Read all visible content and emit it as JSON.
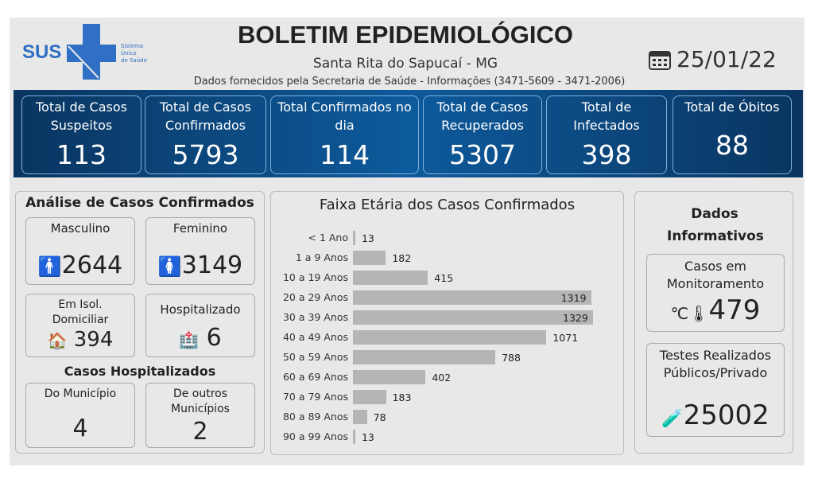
{
  "header": {
    "logo_text": "SUS",
    "logo_sub": [
      "Sistema",
      "Único",
      "de Saúde"
    ],
    "title": "BOLETIM EPIDEMIOLÓGICO",
    "subtitle": "Santa Rita do Sapucaí - MG",
    "source": "Dados fornecidos pela Secretaria de Saúde - Informações (3471-5609 - 3471-2006)",
    "date": "25/01/22",
    "date_icon": "calendar-icon"
  },
  "cards": [
    {
      "label": "Total de Casos Suspeitos",
      "value": "113"
    },
    {
      "label": "Total de Casos Confirmados",
      "value": "5793"
    },
    {
      "label": "Total Confirmados no dia",
      "value": "114"
    },
    {
      "label": "Total de Casos Recuperados",
      "value": "5307"
    },
    {
      "label": "Total de Infectados",
      "value": "398"
    },
    {
      "label": "Total de Óbitos",
      "value": "88"
    }
  ],
  "analysis": {
    "title": "Análise de Casos Confirmados",
    "masculino": {
      "label": "Masculino",
      "value": "2644"
    },
    "feminino": {
      "label": "Feminino",
      "value": "3149"
    },
    "isolamento": {
      "label": "Em Isol. Domiciliar",
      "value": "394"
    },
    "hospitalizado": {
      "label": "Hospitalizado",
      "value": "6"
    },
    "hosp_title": "Casos Hospitalizados",
    "municipio": {
      "label": "Do Município",
      "value": "4"
    },
    "outros": {
      "label": "De outros Municípios",
      "value": "2"
    }
  },
  "info": {
    "title": "Dados Informativos",
    "monitoramento": {
      "label": "Casos em Monitoramento",
      "value": "479"
    },
    "testes": {
      "label": "Testes Realizados Públicos/Privado",
      "value": "25002"
    }
  },
  "chart_data": {
    "type": "bar",
    "orientation": "horizontal",
    "title": "Faixa Etária dos Casos Confirmados",
    "categories": [
      "< 1 Ano",
      "1 a 9 Anos",
      "10 a 19 Anos",
      "20 a 29 Anos",
      "30 a 39 Anos",
      "40 a 49 Anos",
      "50 a 59 Anos",
      "60 a 69 Anos",
      "70 a 79 Anos",
      "80 a 89 Anos",
      "90 a 99 Anos"
    ],
    "values": [
      13,
      182,
      415,
      1319,
      1329,
      1071,
      788,
      402,
      183,
      78,
      13
    ],
    "bar_color": "#b5b5b5",
    "grid": false,
    "data_labels": true
  },
  "colors": {
    "band": "#0d5a9c",
    "brand": "#2f6fc4"
  }
}
